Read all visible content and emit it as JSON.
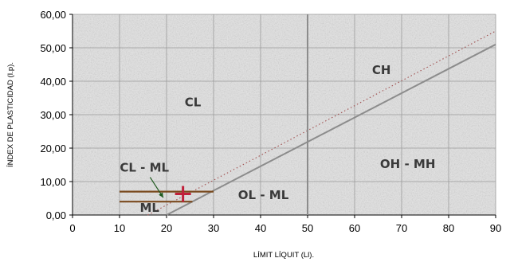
{
  "chart_data": {
    "type": "scatter",
    "xlabel": "LÍMIT LÍQUIT (Ll).",
    "ylabel": "ÍNDEX DE PLASTICIDAD (I.p).",
    "xlim": [
      0,
      90
    ],
    "ylim": [
      0,
      60
    ],
    "x_ticks": [
      "0",
      "10",
      "20",
      "30",
      "40",
      "50",
      "60",
      "70",
      "80",
      "90"
    ],
    "y_ticks": [
      "0,00",
      "10,00",
      "20,00",
      "30,00",
      "40,00",
      "50,00",
      "60,00"
    ],
    "grid": true,
    "background": "textured-grey",
    "lines": [
      {
        "kind": "a-line",
        "style": "solid",
        "color": "#8c8c8c",
        "points": [
          [
            20,
            0
          ],
          [
            90,
            51
          ]
        ]
      },
      {
        "kind": "u-line",
        "style": "dotted",
        "color": "#a05050",
        "points": [
          [
            16,
            0
          ],
          [
            90,
            55
          ]
        ]
      },
      {
        "kind": "ll-50",
        "style": "solid",
        "color": "#8c8c8c",
        "points": [
          [
            50,
            0
          ],
          [
            50,
            60
          ]
        ]
      },
      {
        "kind": "ip-7",
        "style": "solid",
        "color": "#7a4a1e",
        "points": [
          [
            10,
            7
          ],
          [
            30,
            7
          ]
        ]
      },
      {
        "kind": "ip-4",
        "style": "solid",
        "color": "#7a4a1e",
        "points": [
          [
            10,
            4
          ],
          [
            25.5,
            4
          ]
        ]
      }
    ],
    "point": {
      "x": 23.5,
      "y": 6.3,
      "marker": "plus",
      "color": "#c0203a"
    },
    "zones": [
      {
        "label": "CL",
        "x": 25.6,
        "y": 32.5
      },
      {
        "label": "CH",
        "x": 65.7,
        "y": 42.1
      },
      {
        "label": "CL - ML",
        "x": 15.3,
        "y": 13.0
      },
      {
        "label": "OL - ML",
        "x": 40.6,
        "y": 4.8
      },
      {
        "label": "OH - MH",
        "x": 71.3,
        "y": 14.0
      },
      {
        "label": "ML",
        "x": 16.4,
        "y": 0.9
      }
    ],
    "annotation_arrow": {
      "from": [
        16.5,
        11.3
      ],
      "to": [
        19.3,
        5.2
      ]
    }
  }
}
